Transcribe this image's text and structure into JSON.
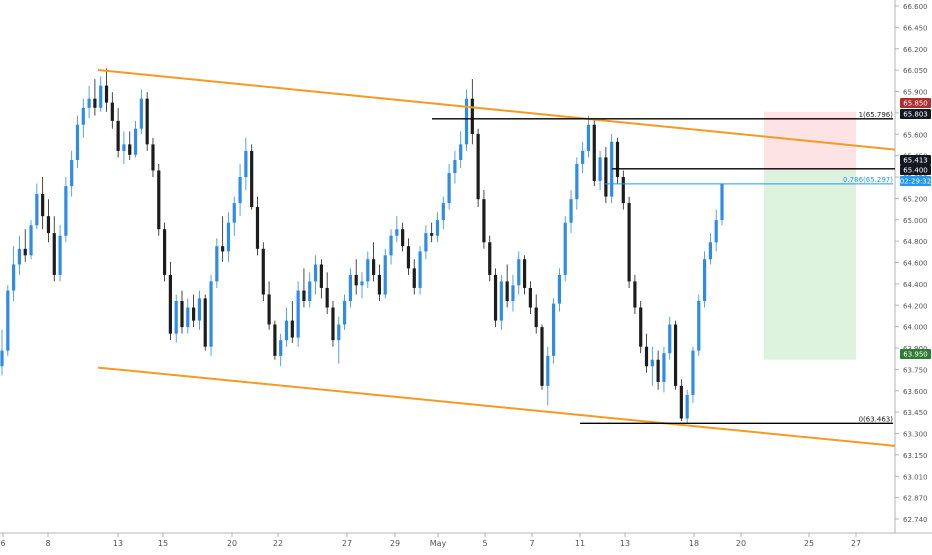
{
  "chart_data": {
    "type": "candlestick",
    "title": "",
    "xlabel": "",
    "ylabel": "",
    "ylim": [
      62.73,
      66.66
    ],
    "x_ticks": [
      "6",
      "8",
      "13",
      "15",
      "20",
      "22",
      "27",
      "29",
      "May",
      "5",
      "7",
      "11",
      "13",
      "18",
      "20",
      "25",
      "27"
    ],
    "y_ticks": [
      "66.600",
      "66.450",
      "66.200",
      "66.050",
      "65.900",
      "65.750",
      "65.600",
      "65.450",
      "65.350",
      "65.200",
      "65.000",
      "64.800",
      "64.600",
      "64.400",
      "64.200",
      "64.000",
      "63.900",
      "63.750",
      "63.600",
      "63.450",
      "63.300",
      "63.150",
      "63.010",
      "62.870",
      "62.740"
    ],
    "grid": false,
    "colors": {
      "up": "#2e8be6",
      "down": "#1c1c1c",
      "channel": "#f59a23",
      "fib_line": "#2196f3",
      "stop_zone": "#fde3e3",
      "target_zone": "#ddf3dd",
      "badge_dark": "#131722",
      "badge_red": "#b22d2d",
      "badge_green": "#2e7d32",
      "badge_blue": "#2196f3"
    },
    "channel": {
      "upper": [
        {
          "x": "10",
          "y": 66.17
        },
        {
          "x": "27-end",
          "y": 65.56
        }
      ],
      "lower": [
        {
          "x": "10",
          "y": 63.89
        },
        {
          "x": "27-end",
          "y": 63.29
        }
      ]
    },
    "fib_levels": [
      {
        "label": "1(65.796)",
        "value": 65.796
      },
      {
        "label": "0.786(65.297)",
        "value": 65.297
      },
      {
        "label": "0(63.463)",
        "value": 63.463
      }
    ],
    "trade_zone": {
      "stop": 65.85,
      "entry": 65.4,
      "target": 63.95
    },
    "price_badges": [
      {
        "text": "65.850",
        "value": 65.85,
        "kind": "red"
      },
      {
        "text": "65.803",
        "value": 65.803,
        "kind": "dark"
      },
      {
        "text": "65.413",
        "value": 65.413,
        "kind": "dark"
      },
      {
        "text": "65.400",
        "value": 65.4,
        "kind": "dark"
      },
      {
        "text": "02:29:32",
        "value": 65.297,
        "kind": "blue"
      },
      {
        "text": "63.950",
        "value": 63.95,
        "kind": "green"
      }
    ],
    "series": [
      {
        "values": [
          [
            63.9,
            64.18,
            63.83,
            64.02
          ],
          [
            64.02,
            64.52,
            63.98,
            64.48
          ],
          [
            64.48,
            64.82,
            64.4,
            64.68
          ],
          [
            64.68,
            64.9,
            64.6,
            64.8
          ],
          [
            64.8,
            64.95,
            64.7,
            64.75
          ],
          [
            64.75,
            65.02,
            64.72,
            64.98
          ],
          [
            64.98,
            65.3,
            64.95,
            65.22
          ],
          [
            65.22,
            65.35,
            64.95,
            65.05
          ],
          [
            65.05,
            65.18,
            64.85,
            64.92
          ],
          [
            64.92,
            65.05,
            64.55,
            64.6
          ],
          [
            64.6,
            64.98,
            64.55,
            64.9
          ],
          [
            64.9,
            65.35,
            64.85,
            65.28
          ],
          [
            65.28,
            65.55,
            65.2,
            65.48
          ],
          [
            65.48,
            65.82,
            65.42,
            65.75
          ],
          [
            65.75,
            65.95,
            65.65,
            65.88
          ],
          [
            65.88,
            66.05,
            65.8,
            65.95
          ],
          [
            65.95,
            66.1,
            65.82,
            65.88
          ],
          [
            65.88,
            66.12,
            65.85,
            66.05
          ],
          [
            66.05,
            66.18,
            65.85,
            65.92
          ],
          [
            65.92,
            66.0,
            65.72,
            65.78
          ],
          [
            65.78,
            65.88,
            65.5,
            65.55
          ],
          [
            65.55,
            65.7,
            65.45,
            65.6
          ],
          [
            65.6,
            65.7,
            65.48,
            65.52
          ],
          [
            65.52,
            65.78,
            65.5,
            65.72
          ],
          [
            65.72,
            66.02,
            65.68,
            65.95
          ],
          [
            65.95,
            66.0,
            65.55,
            65.6
          ],
          [
            65.6,
            65.65,
            65.35,
            65.4
          ],
          [
            65.4,
            65.45,
            64.9,
            64.95
          ],
          [
            64.95,
            65.0,
            64.55,
            64.6
          ],
          [
            64.6,
            64.7,
            64.1,
            64.15
          ],
          [
            64.15,
            64.45,
            64.08,
            64.4
          ],
          [
            64.4,
            64.48,
            64.15,
            64.2
          ],
          [
            64.2,
            64.42,
            64.15,
            64.35
          ],
          [
            64.35,
            64.45,
            64.2,
            64.25
          ],
          [
            64.25,
            64.48,
            64.18,
            64.42
          ],
          [
            64.42,
            64.45,
            64.02,
            64.05
          ],
          [
            64.05,
            64.6,
            63.98,
            64.55
          ],
          [
            64.55,
            64.88,
            64.5,
            64.82
          ],
          [
            64.82,
            65.05,
            64.7,
            64.78
          ],
          [
            64.78,
            65.08,
            64.7,
            65.0
          ],
          [
            65.0,
            65.2,
            64.9,
            65.15
          ],
          [
            65.15,
            65.45,
            65.05,
            65.35
          ],
          [
            65.35,
            65.65,
            65.25,
            65.55
          ],
          [
            65.55,
            65.6,
            65.1,
            65.12
          ],
          [
            65.12,
            65.2,
            64.75,
            64.8
          ],
          [
            64.8,
            64.85,
            64.4,
            64.45
          ],
          [
            64.45,
            64.55,
            64.18,
            64.22
          ],
          [
            64.22,
            64.25,
            63.95,
            63.98
          ],
          [
            63.98,
            64.15,
            63.9,
            64.1
          ],
          [
            64.1,
            64.35,
            64.05,
            64.25
          ],
          [
            64.25,
            64.4,
            64.08,
            64.12
          ],
          [
            64.12,
            64.55,
            64.05,
            64.48
          ],
          [
            64.48,
            64.65,
            64.35,
            64.4
          ],
          [
            64.4,
            64.62,
            64.35,
            64.55
          ],
          [
            64.55,
            64.75,
            64.45,
            64.68
          ],
          [
            64.68,
            64.72,
            64.42,
            64.5
          ],
          [
            64.5,
            64.62,
            64.3,
            64.35
          ],
          [
            64.35,
            64.4,
            64.05,
            64.1
          ],
          [
            64.1,
            64.28,
            63.92,
            64.22
          ],
          [
            64.22,
            64.45,
            64.18,
            64.4
          ],
          [
            64.4,
            64.65,
            64.35,
            64.6
          ],
          [
            64.6,
            64.72,
            64.45,
            64.52
          ],
          [
            64.52,
            64.62,
            64.42,
            64.55
          ],
          [
            64.55,
            64.78,
            64.5,
            64.72
          ],
          [
            64.72,
            64.85,
            64.55,
            64.6
          ],
          [
            64.6,
            64.68,
            64.4,
            64.45
          ],
          [
            64.45,
            64.8,
            64.42,
            64.75
          ],
          [
            64.75,
            64.95,
            64.68,
            64.9
          ],
          [
            64.9,
            65.05,
            64.85,
            64.95
          ],
          [
            64.95,
            65.0,
            64.78,
            64.82
          ],
          [
            64.82,
            64.88,
            64.6,
            64.65
          ],
          [
            64.65,
            64.72,
            64.45,
            64.5
          ],
          [
            64.5,
            64.82,
            64.45,
            64.78
          ],
          [
            64.78,
            64.98,
            64.72,
            64.92
          ],
          [
            64.92,
            65.0,
            64.85,
            64.9
          ],
          [
            64.9,
            65.08,
            64.85,
            65.02
          ],
          [
            65.02,
            65.2,
            64.95,
            65.15
          ],
          [
            65.15,
            65.45,
            65.1,
            65.38
          ],
          [
            65.38,
            65.55,
            65.3,
            65.48
          ],
          [
            65.48,
            65.7,
            65.42,
            65.6
          ],
          [
            65.6,
            66.02,
            65.55,
            65.95
          ],
          [
            65.95,
            66.1,
            65.6,
            65.68
          ],
          [
            65.68,
            65.72,
            65.12,
            65.18
          ],
          [
            65.18,
            65.25,
            64.8,
            64.85
          ],
          [
            64.85,
            64.9,
            64.55,
            64.6
          ],
          [
            64.6,
            64.65,
            64.2,
            64.25
          ],
          [
            64.25,
            64.6,
            64.18,
            64.55
          ],
          [
            64.55,
            64.68,
            64.35,
            64.4
          ],
          [
            64.4,
            64.6,
            64.32,
            64.52
          ],
          [
            64.52,
            64.78,
            64.45,
            64.72
          ],
          [
            64.72,
            64.75,
            64.45,
            64.5
          ],
          [
            64.5,
            64.55,
            64.3,
            64.35
          ],
          [
            64.35,
            64.45,
            64.15,
            64.2
          ],
          [
            64.2,
            64.22,
            63.72,
            63.75
          ],
          [
            63.75,
            64.05,
            63.6,
            63.98
          ],
          [
            63.98,
            64.42,
            63.92,
            64.38
          ],
          [
            64.38,
            64.65,
            64.32,
            64.6
          ],
          [
            64.6,
            65.05,
            64.55,
            65.0
          ],
          [
            65.0,
            65.25,
            64.92,
            65.18
          ],
          [
            65.18,
            65.5,
            65.1,
            65.45
          ],
          [
            65.45,
            65.62,
            65.38,
            65.55
          ],
          [
            65.55,
            65.82,
            65.5,
            65.75
          ],
          [
            65.75,
            65.8,
            65.28,
            65.32
          ],
          [
            65.32,
            65.55,
            65.25,
            65.5
          ],
          [
            65.5,
            65.58,
            65.15,
            65.2
          ],
          [
            65.2,
            65.68,
            65.15,
            65.62
          ],
          [
            65.62,
            65.65,
            65.3,
            65.35
          ],
          [
            65.35,
            65.4,
            65.1,
            65.15
          ],
          [
            65.15,
            65.2,
            64.5,
            64.55
          ],
          [
            64.55,
            64.6,
            64.3,
            64.35
          ],
          [
            64.35,
            64.4,
            64.0,
            64.05
          ],
          [
            64.05,
            64.15,
            63.85,
            63.9
          ],
          [
            63.9,
            64.05,
            63.75,
            63.95
          ],
          [
            63.95,
            64.02,
            63.72,
            63.78
          ],
          [
            63.78,
            64.05,
            63.7,
            64.0
          ],
          [
            64.0,
            64.28,
            63.95,
            64.22
          ],
          [
            64.22,
            64.25,
            63.72,
            63.75
          ],
          [
            63.75,
            63.8,
            63.48,
            63.5
          ],
          [
            63.5,
            63.72,
            63.46,
            63.68
          ],
          [
            63.68,
            64.05,
            63.62,
            64.02
          ],
          [
            64.02,
            64.45,
            63.98,
            64.4
          ],
          [
            64.4,
            64.78,
            64.35,
            64.72
          ],
          [
            64.72,
            64.92,
            64.68,
            64.85
          ],
          [
            64.85,
            65.1,
            64.78,
            65.02
          ],
          [
            65.02,
            65.3,
            64.98,
            65.297
          ]
        ]
      }
    ]
  }
}
